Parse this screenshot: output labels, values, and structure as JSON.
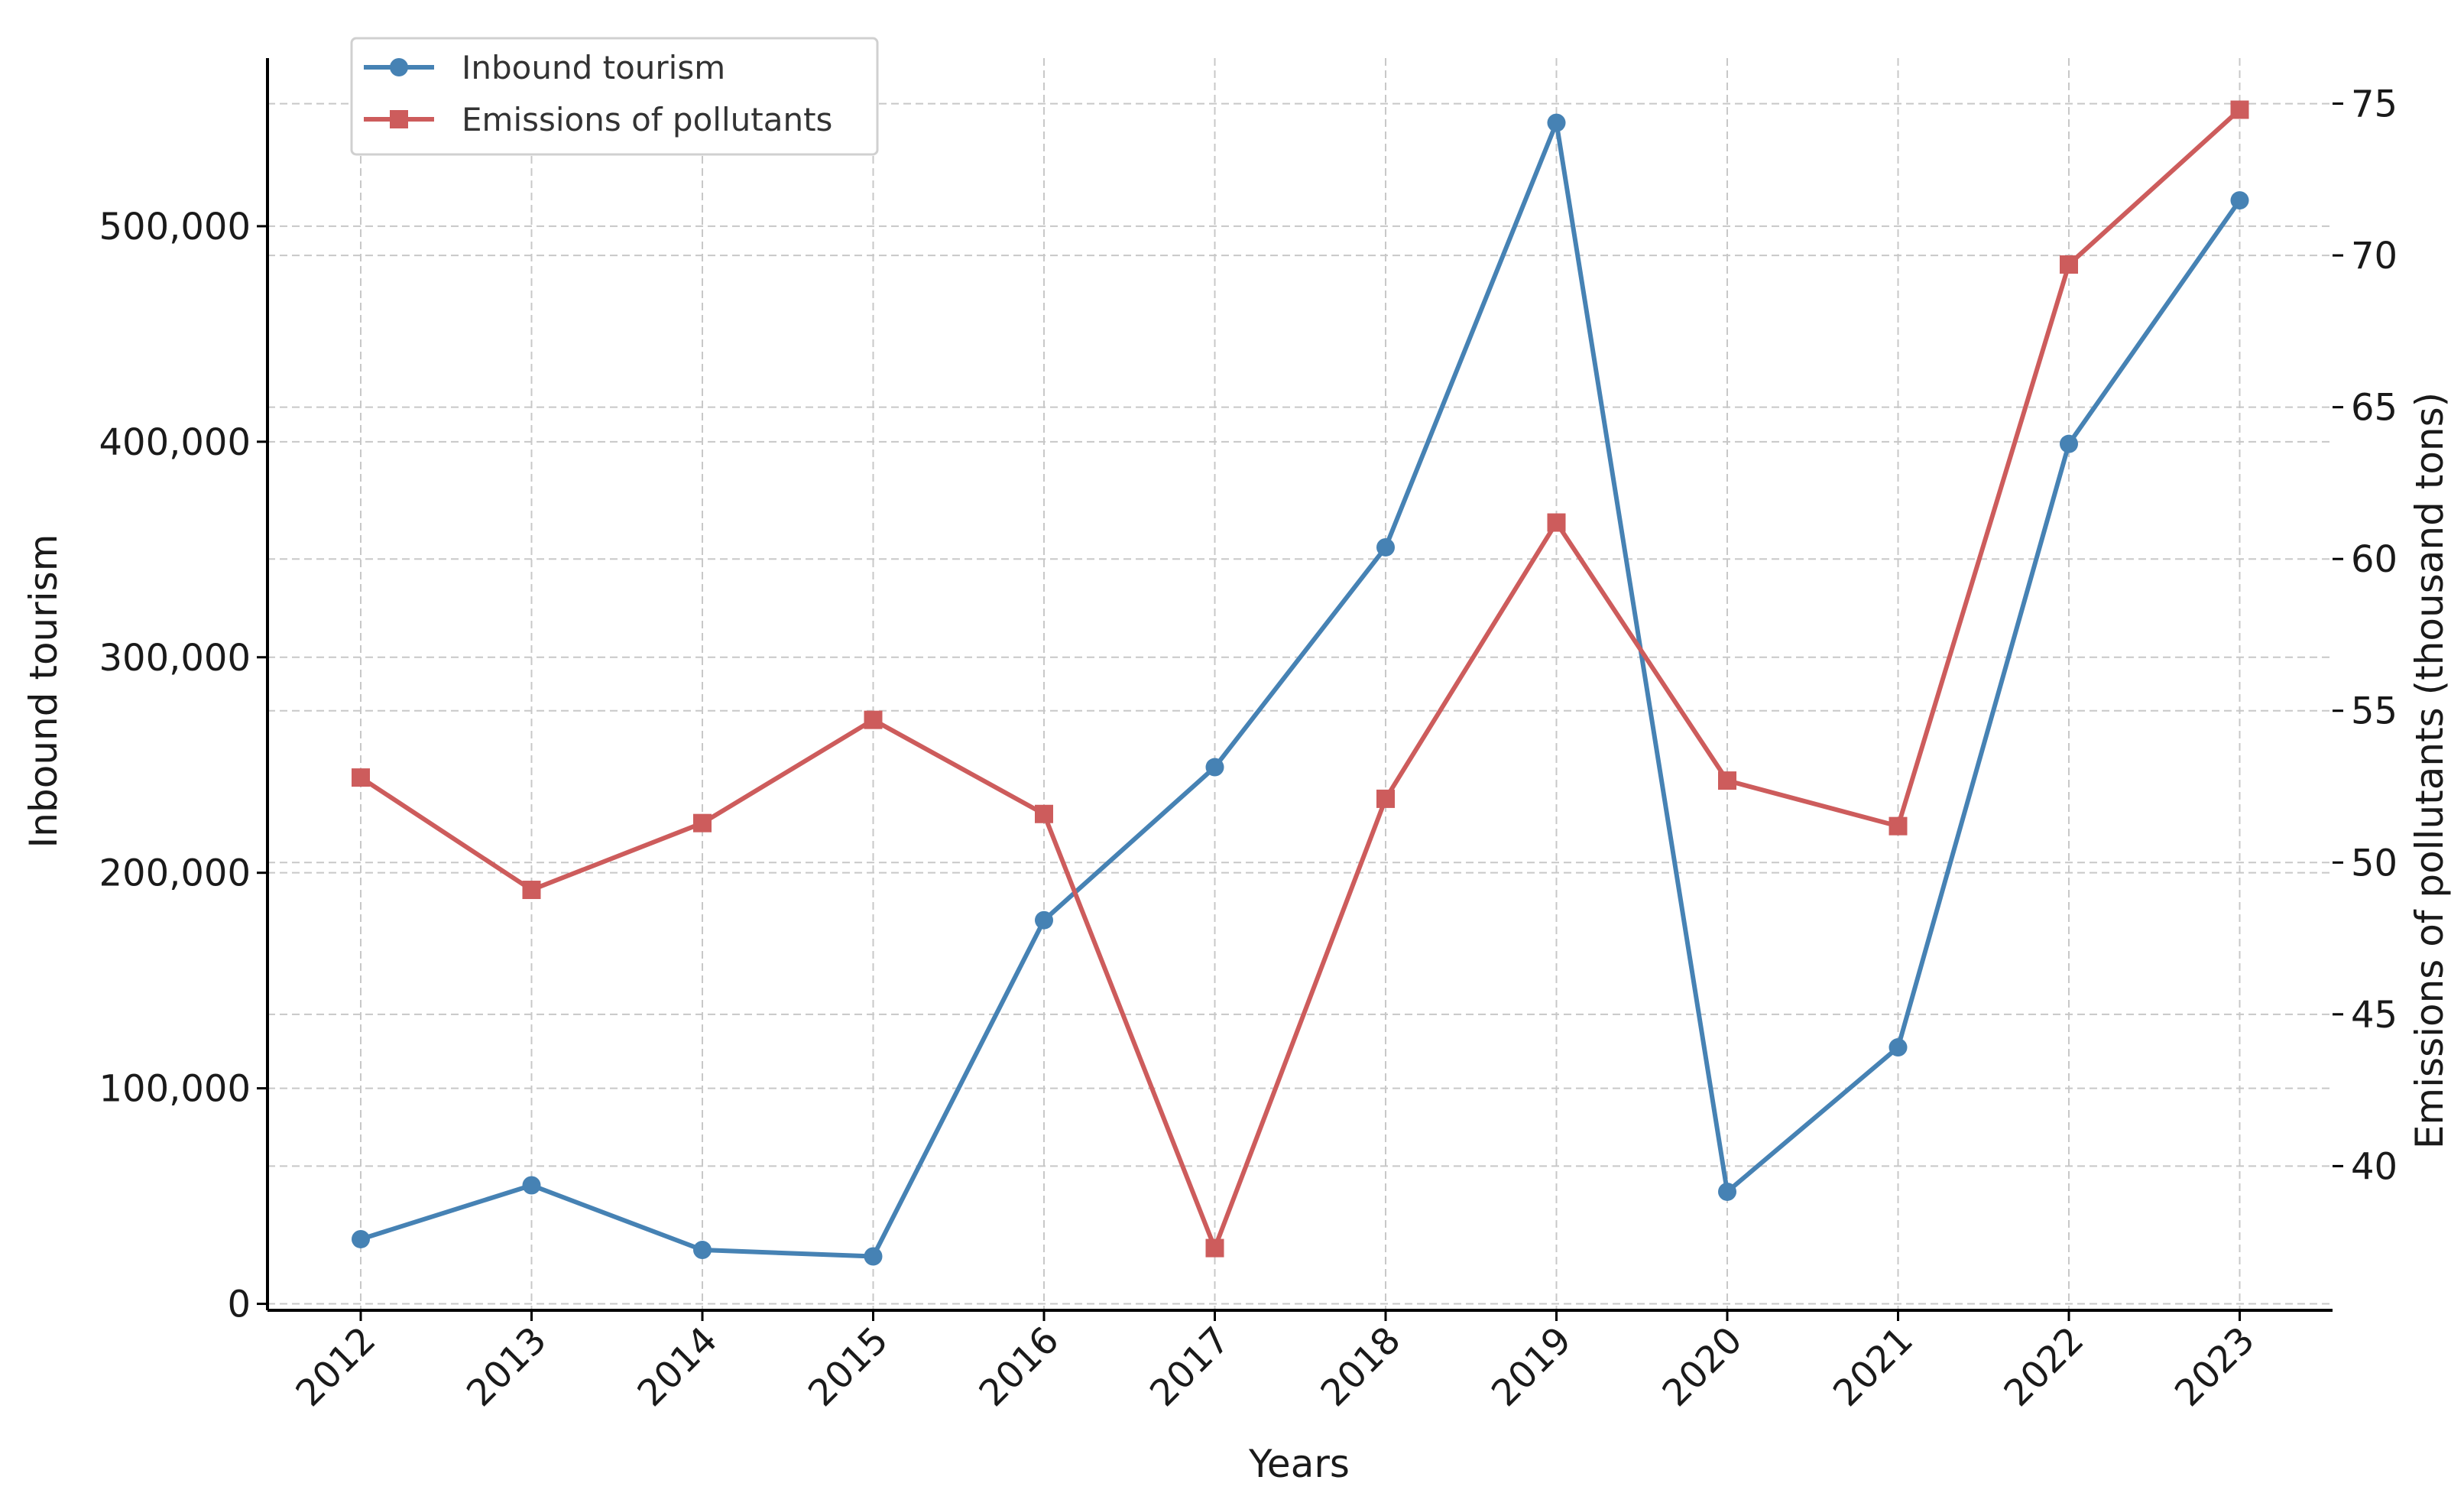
{
  "chart_data": {
    "type": "line",
    "title": "",
    "xlabel": "Years",
    "ylabel": "Inbound tourism",
    "y2label": "Emissions of pollutants (thousand tons)",
    "categories": [
      "2012",
      "2013",
      "2014",
      "2015",
      "2016",
      "2017",
      "2018",
      "2019",
      "2020",
      "2021",
      "2022",
      "2023"
    ],
    "ylim": [
      -3000,
      578000
    ],
    "y2lim": [
      35.25,
      76.5
    ],
    "yticks": [
      0,
      100000,
      200000,
      300000,
      400000,
      500000
    ],
    "ytick_labels": [
      "0",
      "100,000",
      "200,000",
      "300,000",
      "400,000",
      "500,000"
    ],
    "y2ticks": [
      40,
      45,
      50,
      55,
      60,
      65,
      70,
      75
    ],
    "y2tick_labels": [
      "40",
      "45",
      "50",
      "55",
      "60",
      "65",
      "70",
      "75"
    ],
    "grid": true,
    "legend_position": "top-left",
    "series": [
      {
        "name": "Inbound tourism",
        "axis": "left",
        "color": "#4682b4",
        "marker": "circle",
        "values": [
          30000,
          55000,
          25000,
          22000,
          178000,
          249000,
          351000,
          548000,
          52000,
          119000,
          399000,
          512000
        ]
      },
      {
        "name": "Emissions of pollutants",
        "axis": "right",
        "color": "#cd5c5c",
        "marker": "square",
        "values": [
          52.8,
          49.1,
          51.3,
          54.7,
          51.6,
          37.3,
          52.1,
          61.2,
          52.7,
          51.2,
          69.7,
          74.8
        ]
      }
    ]
  }
}
